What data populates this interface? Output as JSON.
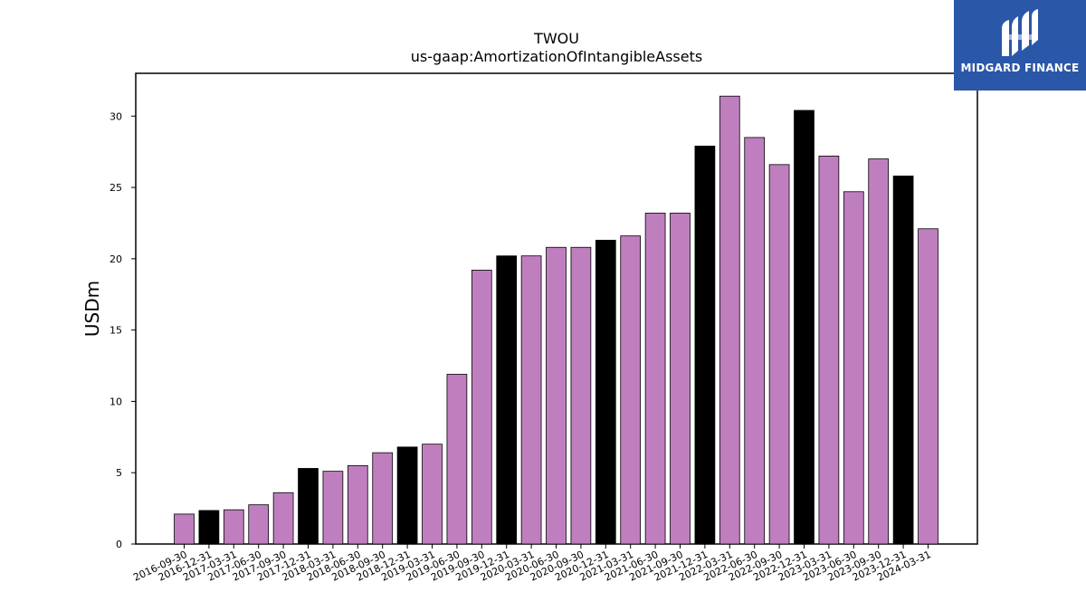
{
  "chart_data": {
    "type": "bar",
    "title": "TWOU",
    "subtitle": "us-gaap:AmortizationOfIntangibleAssets",
    "xlabel": "",
    "ylabel": "USDm",
    "ylim": [
      0,
      33
    ],
    "yticks": [
      0,
      5,
      10,
      15,
      20,
      25,
      30
    ],
    "grid": false,
    "colors": {
      "quarter": "#bf7fbf",
      "year_end": "#000000",
      "edge": "#000000"
    },
    "categories": [
      "2016-09-30",
      "2016-12-31",
      "2017-03-31",
      "2017-06-30",
      "2017-09-30",
      "2017-12-31",
      "2018-03-31",
      "2018-06-30",
      "2018-09-30",
      "2018-12-31",
      "2019-03-31",
      "2019-06-30",
      "2019-09-30",
      "2019-12-31",
      "2020-03-31",
      "2020-06-30",
      "2020-09-30",
      "2020-12-31",
      "2021-03-31",
      "2021-06-30",
      "2021-09-30",
      "2021-12-31",
      "2022-03-31",
      "2022-06-30",
      "2022-09-30",
      "2022-12-31",
      "2023-03-31",
      "2023-06-30",
      "2023-09-30",
      "2023-12-31",
      "2024-03-31"
    ],
    "values": [
      2.1,
      2.35,
      2.4,
      2.75,
      3.6,
      5.3,
      5.1,
      5.5,
      6.4,
      6.8,
      7.0,
      11.9,
      19.2,
      20.2,
      20.2,
      20.8,
      20.8,
      21.3,
      21.6,
      23.2,
      23.2,
      27.9,
      31.4,
      28.5,
      26.6,
      30.4,
      27.2,
      24.7,
      27.0,
      25.8,
      22.1
    ]
  },
  "logo": {
    "text": "MIDGARD FINANCE",
    "icon": "midgard-logo-icon",
    "bg_color": "#2a57a8"
  }
}
